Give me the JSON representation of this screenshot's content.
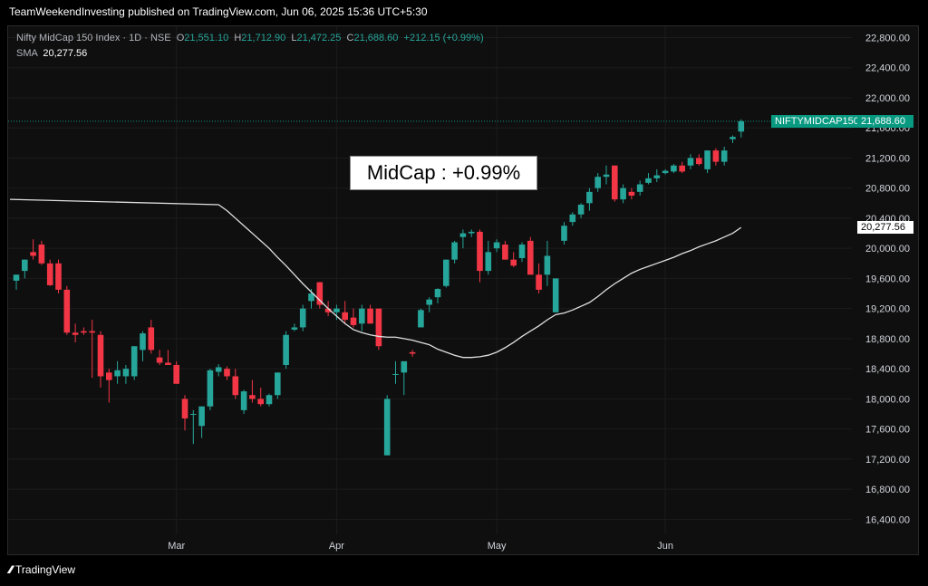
{
  "header": {
    "published_by": "TeamWeekendInvesting published on TradingView.com, Jun 06, 2025 15:36 UTC+5:30"
  },
  "legend": {
    "symbol": "Nifty MidCap 150 Index · 1D · NSE",
    "open_label": "O",
    "open": "21,551.10",
    "high_label": "H",
    "high": "21,712.90",
    "low_label": "L",
    "low": "21,472.25",
    "close_label": "C",
    "close": "21,688.60",
    "change": "+212.15 (+0.99%)",
    "sma_label": "SMA",
    "sma_value": "20,277.56"
  },
  "annotation": "MidCap : +0.99%",
  "price_tag": {
    "name": "NIFTYMIDCAP150",
    "value": "21,688.60"
  },
  "sma_tag": "20,277.56",
  "footer": {
    "brand": "TradingView",
    "logo": "tradingview-logo-icon"
  },
  "colors": {
    "up": "#26a69a",
    "down": "#f23645",
    "sma": "#e0e0e0",
    "tag": "#089981"
  },
  "chart_data": {
    "type": "candlestick",
    "title": "",
    "y_ticks": [
      "22,800.00",
      "22,400.00",
      "22,000.00",
      "21,600.00",
      "21,200.00",
      "20,800.00",
      "20,400.00",
      "20,000.00",
      "19,600.00",
      "19,200.00",
      "18,800.00",
      "18,400.00",
      "18,000.00",
      "17,600.00",
      "17,200.00",
      "16,800.00",
      "16,400.00"
    ],
    "ylim": [
      16200,
      22950
    ],
    "x_labels": [
      {
        "label": "Mar",
        "index": 19
      },
      {
        "label": "Apr",
        "index": 38
      },
      {
        "label": "May",
        "index": 57
      },
      {
        "label": "Jun",
        "index": 77
      }
    ],
    "sma_period": 50,
    "candles": [
      {
        "o": 19570,
        "h": 19650,
        "l": 19450,
        "c": 19650
      },
      {
        "o": 19700,
        "h": 19850,
        "l": 19600,
        "c": 19850
      },
      {
        "o": 19950,
        "h": 20120,
        "l": 19850,
        "c": 19900
      },
      {
        "o": 20050,
        "h": 20100,
        "l": 19780,
        "c": 19800
      },
      {
        "o": 19800,
        "h": 19850,
        "l": 19500,
        "c": 19510
      },
      {
        "o": 19800,
        "h": 19850,
        "l": 19400,
        "c": 19450
      },
      {
        "o": 19450,
        "h": 19500,
        "l": 18850,
        "c": 18880
      },
      {
        "o": 18880,
        "h": 19000,
        "l": 18750,
        "c": 18850
      },
      {
        "o": 18900,
        "h": 18950,
        "l": 18850,
        "c": 18880
      },
      {
        "o": 18900,
        "h": 19050,
        "l": 18280,
        "c": 18880
      },
      {
        "o": 18850,
        "h": 18900,
        "l": 18150,
        "c": 18300
      },
      {
        "o": 18350,
        "h": 18400,
        "l": 17950,
        "c": 18250
      },
      {
        "o": 18300,
        "h": 18500,
        "l": 18200,
        "c": 18380
      },
      {
        "o": 18300,
        "h": 18450,
        "l": 18200,
        "c": 18400
      },
      {
        "o": 18300,
        "h": 18700,
        "l": 18250,
        "c": 18700
      },
      {
        "o": 18650,
        "h": 18900,
        "l": 18500,
        "c": 18870
      },
      {
        "o": 18950,
        "h": 19050,
        "l": 18600,
        "c": 18650
      },
      {
        "o": 18550,
        "h": 18650,
        "l": 18450,
        "c": 18480
      },
      {
        "o": 18480,
        "h": 18650,
        "l": 18450,
        "c": 18450
      },
      {
        "o": 18450,
        "h": 18500,
        "l": 18200,
        "c": 18200
      },
      {
        "o": 18000,
        "h": 18050,
        "l": 17580,
        "c": 17740
      },
      {
        "o": 17800,
        "h": 17850,
        "l": 17400,
        "c": 17800
      },
      {
        "o": 17640,
        "h": 17900,
        "l": 17480,
        "c": 17900
      },
      {
        "o": 17900,
        "h": 18400,
        "l": 17850,
        "c": 18380
      },
      {
        "o": 18360,
        "h": 18460,
        "l": 18300,
        "c": 18420
      },
      {
        "o": 18400,
        "h": 18430,
        "l": 18250,
        "c": 18300
      },
      {
        "o": 18300,
        "h": 18400,
        "l": 18000,
        "c": 18050
      },
      {
        "o": 17850,
        "h": 18120,
        "l": 17800,
        "c": 18100
      },
      {
        "o": 18050,
        "h": 18250,
        "l": 17950,
        "c": 18000
      },
      {
        "o": 18000,
        "h": 18150,
        "l": 17900,
        "c": 17930
      },
      {
        "o": 17930,
        "h": 18070,
        "l": 17900,
        "c": 18050
      },
      {
        "o": 18050,
        "h": 18350,
        "l": 18000,
        "c": 18350
      },
      {
        "o": 18450,
        "h": 18900,
        "l": 18400,
        "c": 18850
      },
      {
        "o": 18920,
        "h": 19000,
        "l": 18900,
        "c": 18950
      },
      {
        "o": 18950,
        "h": 19250,
        "l": 18900,
        "c": 19200
      },
      {
        "o": 19300,
        "h": 19460,
        "l": 19200,
        "c": 19400
      },
      {
        "o": 19550,
        "h": 19550,
        "l": 19200,
        "c": 19250
      },
      {
        "o": 19200,
        "h": 19300,
        "l": 19100,
        "c": 19150
      },
      {
        "o": 19150,
        "h": 19250,
        "l": 19050,
        "c": 19200
      },
      {
        "o": 19150,
        "h": 19300,
        "l": 19000,
        "c": 19050
      },
      {
        "o": 19080,
        "h": 19200,
        "l": 18950,
        "c": 18980
      },
      {
        "o": 19000,
        "h": 19250,
        "l": 18900,
        "c": 19200
      },
      {
        "o": 19200,
        "h": 19250,
        "l": 19000,
        "c": 19000
      },
      {
        "o": 19200,
        "h": 19200,
        "l": 18650,
        "c": 18700
      },
      {
        "o": 17250,
        "h": 18050,
        "l": 17250,
        "c": 18000
      },
      {
        "o": 18320,
        "h": 18500,
        "l": 18200,
        "c": 18330
      },
      {
        "o": 18350,
        "h": 18450,
        "l": 18050,
        "c": 18500
      },
      {
        "o": 18620,
        "h": 18650,
        "l": 18560,
        "c": 18600
      },
      {
        "o": 18950,
        "h": 19200,
        "l": 18950,
        "c": 19180
      },
      {
        "o": 19250,
        "h": 19350,
        "l": 19150,
        "c": 19320
      },
      {
        "o": 19350,
        "h": 19470,
        "l": 19270,
        "c": 19460
      },
      {
        "o": 19500,
        "h": 19850,
        "l": 19480,
        "c": 19850
      },
      {
        "o": 19850,
        "h": 20100,
        "l": 19800,
        "c": 20080
      },
      {
        "o": 20150,
        "h": 20250,
        "l": 20000,
        "c": 20200
      },
      {
        "o": 20200,
        "h": 20250,
        "l": 20150,
        "c": 20220
      },
      {
        "o": 20220,
        "h": 20250,
        "l": 19550,
        "c": 19700
      },
      {
        "o": 19700,
        "h": 20100,
        "l": 19650,
        "c": 19950
      },
      {
        "o": 20000,
        "h": 20120,
        "l": 19950,
        "c": 20080
      },
      {
        "o": 20050,
        "h": 20100,
        "l": 19850,
        "c": 19850
      },
      {
        "o": 19850,
        "h": 19950,
        "l": 19750,
        "c": 19770
      },
      {
        "o": 19870,
        "h": 20080,
        "l": 19820,
        "c": 20050
      },
      {
        "o": 20100,
        "h": 20150,
        "l": 19650,
        "c": 19650
      },
      {
        "o": 19650,
        "h": 19800,
        "l": 19400,
        "c": 19450
      },
      {
        "o": 19650,
        "h": 20100,
        "l": 19500,
        "c": 19900
      },
      {
        "o": 19150,
        "h": 19600,
        "l": 19150,
        "c": 19600
      },
      {
        "o": 20100,
        "h": 20350,
        "l": 20050,
        "c": 20300
      },
      {
        "o": 20350,
        "h": 20480,
        "l": 20300,
        "c": 20450
      },
      {
        "o": 20450,
        "h": 20600,
        "l": 20400,
        "c": 20580
      },
      {
        "o": 20600,
        "h": 20800,
        "l": 20500,
        "c": 20750
      },
      {
        "o": 20800,
        "h": 21000,
        "l": 20750,
        "c": 20950
      },
      {
        "o": 20950,
        "h": 21100,
        "l": 20850,
        "c": 20980
      },
      {
        "o": 21100,
        "h": 21100,
        "l": 20620,
        "c": 20650
      },
      {
        "o": 20650,
        "h": 20850,
        "l": 20600,
        "c": 20800
      },
      {
        "o": 20750,
        "h": 20800,
        "l": 20650,
        "c": 20700
      },
      {
        "o": 20750,
        "h": 20900,
        "l": 20700,
        "c": 20850
      },
      {
        "o": 20870,
        "h": 21000,
        "l": 20850,
        "c": 20930
      },
      {
        "o": 20930,
        "h": 21050,
        "l": 20880,
        "c": 20970
      },
      {
        "o": 21000,
        "h": 21050,
        "l": 20980,
        "c": 21030
      },
      {
        "o": 21020,
        "h": 21120,
        "l": 21000,
        "c": 21100
      },
      {
        "o": 21100,
        "h": 21150,
        "l": 21000,
        "c": 21020
      },
      {
        "o": 21100,
        "h": 21250,
        "l": 21050,
        "c": 21200
      },
      {
        "o": 21200,
        "h": 21250,
        "l": 21100,
        "c": 21120
      },
      {
        "o": 21050,
        "h": 21300,
        "l": 21000,
        "c": 21300
      },
      {
        "o": 21300,
        "h": 21330,
        "l": 21100,
        "c": 21150
      },
      {
        "o": 21150,
        "h": 21350,
        "l": 21100,
        "c": 21300
      },
      {
        "o": 21450,
        "h": 21500,
        "l": 21400,
        "c": 21480
      },
      {
        "o": 21551.1,
        "h": 21712.9,
        "l": 21472.25,
        "c": 21688.6
      }
    ],
    "sma": [
      20650,
      20580,
      20500,
      20400,
      20300,
      20200,
      20100,
      20000,
      19880,
      19770,
      19650,
      19530,
      19420,
      19310,
      19200,
      19100,
      19000,
      18920,
      18880,
      18850,
      18830,
      18820,
      18820,
      18800,
      18780,
      18750,
      18720,
      18660,
      18620,
      18580,
      18550,
      18550,
      18560,
      18580,
      18620,
      18680,
      18750,
      18830,
      18900,
      18970,
      19050,
      19120,
      19140,
      19180,
      19230,
      19280,
      19360,
      19450,
      19530,
      19600,
      19670,
      19720,
      19760,
      19800,
      19840,
      19880,
      19930,
      19970,
      20020,
      20060,
      20100,
      20150,
      20200,
      20277.56
    ]
  }
}
